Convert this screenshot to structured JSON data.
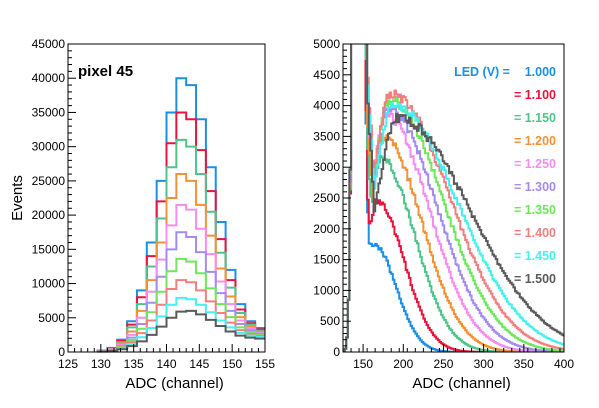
{
  "chart_data": [
    {
      "type": "histogram",
      "annotation": "pixel 45",
      "xlabel": "ADC (channel)",
      "ylabel": "Events",
      "xlim": [
        125,
        155
      ],
      "ylim": [
        0,
        45000
      ],
      "xticks": [
        125,
        130,
        135,
        140,
        145,
        150,
        155
      ],
      "yticks": [
        0,
        5000,
        10000,
        15000,
        20000,
        25000,
        30000,
        35000,
        40000,
        45000
      ],
      "bin_width": 1.5,
      "bin_edges": [
        129.5,
        131,
        132.5,
        134,
        135.5,
        137,
        138.5,
        140,
        141.5,
        143,
        144.5,
        146,
        147.5,
        149,
        150.5,
        152,
        153.5,
        155
      ],
      "series": [
        {
          "name": "1.000",
          "color": "#1a8fe8",
          "values": [
            200,
            600,
            1800,
            4500,
            9000,
            16000,
            25000,
            35000,
            40000,
            39000,
            34000,
            27000,
            19000,
            12000,
            7000,
            4500,
            3500
          ]
        },
        {
          "name": "1.100",
          "color": "#e8143c",
          "values": [
            180,
            550,
            1600,
            4000,
            8000,
            14000,
            22000,
            30500,
            35000,
            34000,
            29500,
            23500,
            16500,
            10500,
            6200,
            4200,
            3300
          ]
        },
        {
          "name": "1.150",
          "color": "#4fc48a",
          "values": [
            160,
            500,
            1450,
            3600,
            7000,
            12500,
            19500,
            27000,
            31000,
            30000,
            26000,
            20500,
            14500,
            9400,
            5700,
            4000,
            3100
          ]
        },
        {
          "name": "1.200",
          "color": "#f39234",
          "values": [
            140,
            430,
            1250,
            3000,
            6000,
            10500,
            16000,
            22500,
            26000,
            25000,
            21500,
            17000,
            12200,
            8100,
            5100,
            3700,
            2950
          ]
        },
        {
          "name": "1.250",
          "color": "#f78cf0",
          "values": [
            120,
            380,
            1050,
            2500,
            5000,
            8800,
            13500,
            18500,
            21500,
            20800,
            18000,
            14300,
            10300,
            7000,
            4600,
            3400,
            2800
          ]
        },
        {
          "name": "1.300",
          "color": "#a28cf0",
          "values": [
            100,
            330,
            900,
            2100,
            4100,
            7200,
            11000,
            15000,
            17500,
            16800,
            14600,
            11700,
            8600,
            6000,
            4100,
            3150,
            2650
          ]
        },
        {
          "name": "1.350",
          "color": "#6ee85a",
          "values": [
            90,
            280,
            760,
            1750,
            3400,
            5800,
            8800,
            11800,
            13600,
            13200,
            11500,
            9300,
            7000,
            5100,
            3600,
            2900,
            2500
          ]
        },
        {
          "name": "1.400",
          "color": "#f27f80",
          "values": [
            80,
            240,
            640,
            1450,
            2750,
            4600,
            6900,
            9200,
            10500,
            10200,
            9000,
            7400,
            5700,
            4300,
            3200,
            2650,
            2350
          ]
        },
        {
          "name": "1.450",
          "color": "#44f0f0",
          "values": [
            70,
            200,
            520,
            1150,
            2150,
            3500,
            5200,
            6900,
            7900,
            7700,
            6900,
            5800,
            4600,
            3600,
            2800,
            2400,
            2200
          ]
        },
        {
          "name": "1.500",
          "color": "#5a5a5a",
          "values": [
            60,
            160,
            400,
            850,
            1550,
            2500,
            3700,
            5000,
            5900,
            6000,
            5500,
            4700,
            3800,
            3000,
            2400,
            2100,
            1950
          ]
        }
      ]
    },
    {
      "type": "histogram",
      "xlabel": "ADC (channel)",
      "xlim": [
        125,
        400
      ],
      "ylim": [
        0,
        5000
      ],
      "xticks": [
        150,
        200,
        250,
        300,
        350,
        400
      ],
      "yticks": [
        0,
        500,
        1000,
        1500,
        2000,
        2500,
        3000,
        3500,
        4000,
        4500,
        5000
      ],
      "legend_title": "LED (V) =",
      "legend_position": "top-right",
      "pedestal": {
        "center": 144,
        "sigma": 4.5
      },
      "series": [
        {
          "name": "1.000",
          "color": "#1a8fe8",
          "peak_x": 163,
          "peak_y": 1750,
          "sigma_left": 10,
          "sigma_right": 28,
          "valley_y": 1150
        },
        {
          "name": "1.100",
          "color": "#e8143c",
          "peak_x": 167,
          "peak_y": 2450,
          "sigma_left": 12,
          "sigma_right": 34,
          "valley_y": 1700
        },
        {
          "name": "1.150",
          "color": "#4fc48a",
          "peak_x": 172,
          "peak_y": 3150,
          "sigma_left": 14,
          "sigma_right": 42,
          "valley_y": 2550
        },
        {
          "name": "1.200",
          "color": "#f39234",
          "peak_x": 175,
          "peak_y": 3500,
          "sigma_left": 16,
          "sigma_right": 48,
          "valley_y": 2950
        },
        {
          "name": "1.250",
          "color": "#f78cf0",
          "peak_x": 178,
          "peak_y": 3850,
          "sigma_left": 18,
          "sigma_right": 54,
          "valley_y": 3300
        },
        {
          "name": "1.300",
          "color": "#a28cf0",
          "peak_x": 181,
          "peak_y": 3950,
          "sigma_left": 20,
          "sigma_right": 60,
          "valley_y": 3450
        },
        {
          "name": "1.350",
          "color": "#6ee85a",
          "peak_x": 183,
          "peak_y": 4100,
          "sigma_left": 22,
          "sigma_right": 66,
          "valley_y": 3600
        },
        {
          "name": "1.400",
          "color": "#f27f80",
          "peak_x": 185,
          "peak_y": 4200,
          "sigma_left": 24,
          "sigma_right": 72,
          "valley_y": 3700
        },
        {
          "name": "1.450",
          "color": "#44f0f0",
          "peak_x": 188,
          "peak_y": 4000,
          "sigma_left": 26,
          "sigma_right": 80,
          "valley_y": 3550
        },
        {
          "name": "1.500",
          "color": "#5a5a5a",
          "peak_x": 193,
          "peak_y": 3800,
          "sigma_left": 28,
          "sigma_right": 90,
          "valley_y": 3300
        }
      ]
    }
  ]
}
